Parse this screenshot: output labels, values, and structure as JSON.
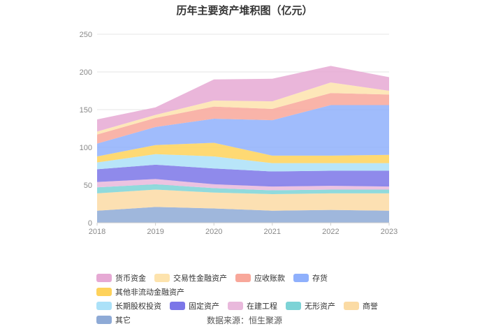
{
  "title": "历年主要资产堆积图（亿元）",
  "source": "数据来源：恒生聚源",
  "chart_data": {
    "type": "area",
    "stacked": true,
    "title": "历年主要资产堆积图（亿元）",
    "xlabel": "",
    "ylabel": "",
    "categories": [
      "2018",
      "2019",
      "2020",
      "2021",
      "2022",
      "2023"
    ],
    "ylim": [
      0,
      250
    ],
    "yticks": [
      0,
      50,
      100,
      150,
      200,
      250
    ],
    "grid": true,
    "legend_position": "bottom",
    "series": [
      {
        "name": "其它",
        "color": "#8eaad6",
        "values": [
          16,
          21,
          19,
          16,
          17,
          16
        ]
      },
      {
        "name": "商誉",
        "color": "#fbdba4",
        "values": [
          23,
          23,
          21,
          22,
          22,
          23
        ]
      },
      {
        "name": "无形资产",
        "color": "#7dd3d6",
        "values": [
          8,
          7,
          6,
          5,
          5,
          5
        ]
      },
      {
        "name": "在建工程",
        "color": "#e9b9dc",
        "values": [
          7,
          7,
          5,
          5,
          5,
          4
        ]
      },
      {
        "name": "固定资产",
        "color": "#7b76e8",
        "values": [
          17,
          19,
          21,
          20,
          20,
          21
        ]
      },
      {
        "name": "长期股权投资",
        "color": "#abe1f8",
        "values": [
          9,
          14,
          16,
          11,
          10,
          10
        ]
      },
      {
        "name": "其他非流动金融资产",
        "color": "#fed25b",
        "values": [
          8,
          12,
          18,
          10,
          10,
          11
        ]
      },
      {
        "name": "存货",
        "color": "#8fb0fc",
        "values": [
          17,
          24,
          32,
          47,
          67,
          66
        ]
      },
      {
        "name": "应收账款",
        "color": "#f8a79a",
        "values": [
          12,
          12,
          16,
          15,
          16,
          14
        ]
      },
      {
        "name": "交易性金融资产",
        "color": "#fde3ad",
        "values": [
          4,
          4,
          8,
          10,
          14,
          5
        ]
      },
      {
        "name": "货币资金",
        "color": "#e6a9d4",
        "values": [
          16,
          10,
          28,
          30,
          22,
          18
        ]
      }
    ]
  },
  "legend_rows": [
    [
      "货币资金",
      "交易性金融资产",
      "应收账款",
      "存货",
      "其他非流动金融资产"
    ],
    [
      "长期股权投资",
      "固定资产",
      "在建工程",
      "无形资产",
      "商誉",
      "其它"
    ]
  ]
}
